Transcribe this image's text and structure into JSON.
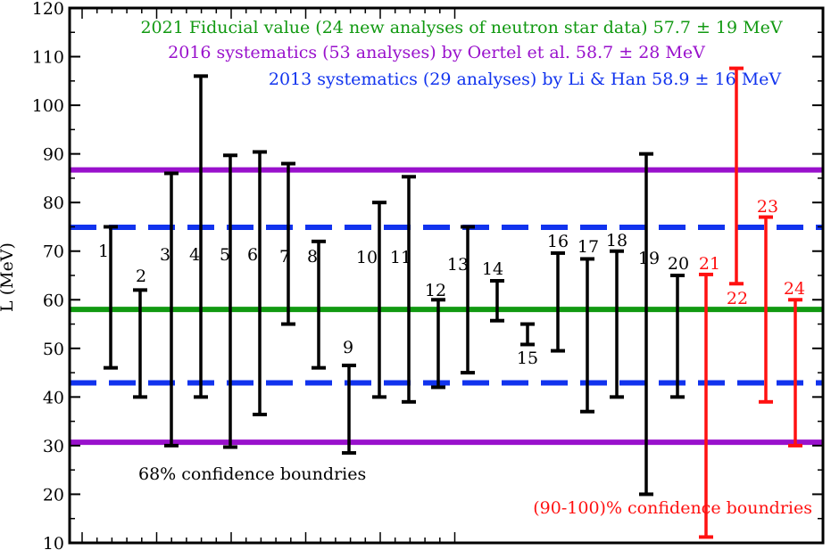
{
  "chart_data": {
    "type": "errorbar",
    "ylabel": "L (MeV)",
    "ylim": [
      10,
      120
    ],
    "yticks": [
      10,
      20,
      30,
      40,
      50,
      60,
      70,
      80,
      90,
      100,
      110,
      120
    ],
    "xticks_labeled": false,
    "grid": false,
    "bands": [
      {
        "label": "2021 Fiducial value (24 new analyses of neutron star data) 57.7 ± 19 MeV",
        "color": "#119911",
        "style": "solid",
        "values": [
          58
        ]
      },
      {
        "label": "2016 systematics (53 analyses) by Oertel et al. 58.7 ± 28 MeV",
        "color": "#9911cc",
        "style": "solid",
        "values": [
          30.7,
          86.7
        ]
      },
      {
        "label": "2013 systematics (29 analyses) by Li & Han 58.9 ± 16 MeV",
        "color": "#1133ee",
        "style": "dashed",
        "values": [
          42.9,
          74.9
        ]
      }
    ],
    "series": [
      {
        "color": "#000000",
        "points": [
          {
            "label": "1",
            "low": 46,
            "high": 75
          },
          {
            "label": "2",
            "low": 40,
            "high": 62
          },
          {
            "label": "3",
            "low": 30,
            "high": 86
          },
          {
            "label": "4",
            "low": 40,
            "high": 106
          },
          {
            "label": "5",
            "low": 29.7,
            "high": 89.7
          },
          {
            "label": "6",
            "low": 36.4,
            "high": 90.4
          },
          {
            "label": "7",
            "low": 55,
            "high": 88
          },
          {
            "label": "8",
            "low": 46,
            "high": 72
          },
          {
            "label": "9",
            "low": 28.5,
            "high": 46.5
          },
          {
            "label": "10",
            "low": 40,
            "high": 80
          },
          {
            "label": "11",
            "low": 39,
            "high": 85.3
          },
          {
            "label": "12",
            "low": 42,
            "high": 60
          },
          {
            "label": "13",
            "low": 45,
            "high": 75
          },
          {
            "label": "14",
            "low": 55.7,
            "high": 63.9
          },
          {
            "label": "15",
            "low": 50.8,
            "high": 55
          },
          {
            "label": "16",
            "low": 49.5,
            "high": 69.6
          },
          {
            "label": "17",
            "low": 37,
            "high": 68.4
          },
          {
            "label": "18",
            "low": 40,
            "high": 70
          },
          {
            "label": "19",
            "low": 20,
            "high": 90
          },
          {
            "label": "20",
            "low": 40,
            "high": 65
          }
        ]
      },
      {
        "color": "#ff1111",
        "points": [
          {
            "label": "21",
            "low": 11.2,
            "high": 65.2
          },
          {
            "label": "22",
            "low": 63.3,
            "high": 107.6
          },
          {
            "label": "23",
            "low": 39,
            "high": 77
          },
          {
            "label": "24",
            "low": 30,
            "high": 60
          }
        ]
      }
    ],
    "annotations": [
      {
        "text": "68% confidence boundries",
        "color": "#000000"
      },
      {
        "text": "(90-100)% confidence boundries",
        "color": "#ff1111"
      }
    ]
  }
}
